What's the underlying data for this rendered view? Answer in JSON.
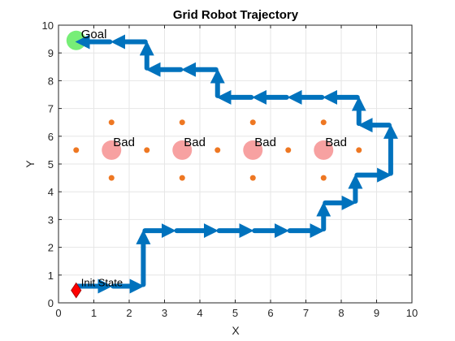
{
  "chart_data": {
    "type": "scatter",
    "title": "Grid Robot Trajectory",
    "xlabel": "X",
    "ylabel": "Y",
    "xlim": [
      0,
      10
    ],
    "ylim": [
      0,
      10
    ],
    "xticks": [
      "0",
      "1",
      "2",
      "3",
      "4",
      "5",
      "6",
      "7",
      "8",
      "9",
      "10"
    ],
    "yticks": [
      "0",
      "1",
      "2",
      "3",
      "4",
      "5",
      "6",
      "7",
      "8",
      "9",
      "10"
    ],
    "grid": true,
    "trajectory_color": "#0072BD",
    "trajectory": [
      [
        0.5,
        0.6
      ],
      [
        1.5,
        0.6
      ],
      [
        2.4,
        0.6
      ],
      [
        2.4,
        2.6
      ],
      [
        3.3,
        2.6
      ],
      [
        4.5,
        2.6
      ],
      [
        5.5,
        2.6
      ],
      [
        6.5,
        2.6
      ],
      [
        7.5,
        2.6
      ],
      [
        7.5,
        3.6
      ],
      [
        8.4,
        3.6
      ],
      [
        8.4,
        4.6
      ],
      [
        9.4,
        4.6
      ],
      [
        9.4,
        6.4
      ],
      [
        8.5,
        6.4
      ],
      [
        8.5,
        7.4
      ],
      [
        7.5,
        7.4
      ],
      [
        6.5,
        7.4
      ],
      [
        5.5,
        7.4
      ],
      [
        4.5,
        7.4
      ],
      [
        4.5,
        8.4
      ],
      [
        3.5,
        8.4
      ],
      [
        2.5,
        8.4
      ],
      [
        2.5,
        9.4
      ],
      [
        1.5,
        9.4
      ],
      [
        0.5,
        9.4
      ]
    ],
    "goal": {
      "x": 0.5,
      "y": 9.45,
      "label": "Goal",
      "color": "#77EE77"
    },
    "init": {
      "x": 0.5,
      "y": 0.45,
      "label": "Init State",
      "color": "#FF0000"
    },
    "bad_states": [
      {
        "x": 1.5,
        "y": 5.5,
        "label": "Bad"
      },
      {
        "x": 3.5,
        "y": 5.5,
        "label": "Bad"
      },
      {
        "x": 5.5,
        "y": 5.5,
        "label": "Bad"
      },
      {
        "x": 7.5,
        "y": 5.5,
        "label": "Bad"
      }
    ],
    "bad_color": "#F7A1A1",
    "neighbor_color": "#EE7722",
    "neighbors": [
      [
        1.5,
        6.5
      ],
      [
        0.5,
        5.5
      ],
      [
        2.5,
        5.5
      ],
      [
        1.5,
        4.5
      ],
      [
        3.5,
        6.5
      ],
      [
        4.5,
        5.5
      ],
      [
        3.5,
        4.5
      ],
      [
        5.5,
        6.5
      ],
      [
        6.5,
        5.5
      ],
      [
        5.5,
        4.5
      ],
      [
        7.5,
        6.5
      ],
      [
        8.5,
        5.5
      ],
      [
        7.5,
        4.5
      ]
    ]
  }
}
